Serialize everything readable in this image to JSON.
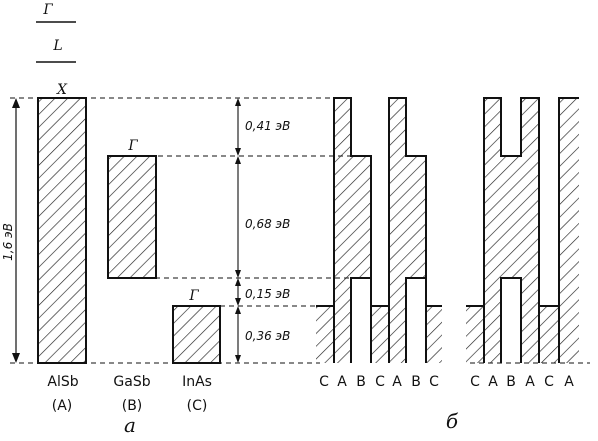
{
  "legend": {
    "gamma": "Г",
    "l": "L",
    "x": "X"
  },
  "materials": [
    {
      "name": "AlSb",
      "tag": "(A)"
    },
    {
      "name": "GaSb",
      "tag": "(B)"
    },
    {
      "name": "InAs",
      "tag": "(C)"
    }
  ],
  "band_labels": {
    "alsb": "X",
    "gasb": "Г",
    "inas": "Г"
  },
  "total_gap": "1,6 эВ",
  "offsets": [
    "0,41 эВ",
    "0,68 эВ",
    "0,15 эВ",
    "0,36 эВ"
  ],
  "panel_a": "a",
  "panel_b": "б",
  "seq1": [
    "C",
    "A",
    "B",
    "C",
    "A",
    "B",
    "C"
  ],
  "seq2": [
    "C",
    "A",
    "B",
    "A",
    "C",
    "A"
  ],
  "colors": {
    "line": "#111111",
    "hatch": "#222222",
    "background": "#ffffff"
  }
}
